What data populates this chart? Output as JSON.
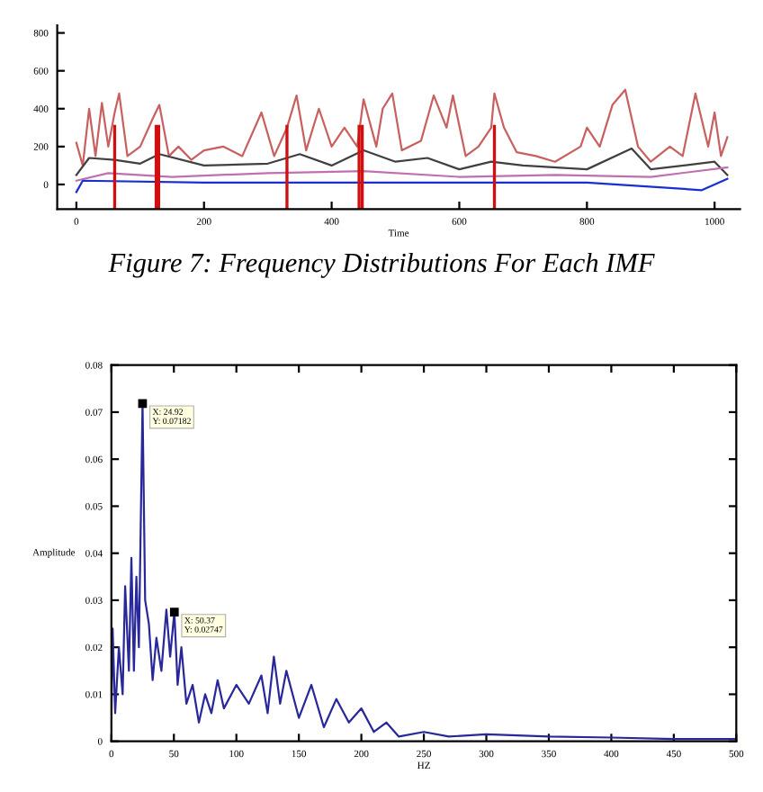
{
  "chart_data": [
    {
      "type": "line",
      "xlabel": "Time",
      "xlim": [
        -30,
        1040
      ],
      "ylim": [
        -130,
        840
      ],
      "xticks": [
        0,
        200,
        400,
        600,
        800,
        1000
      ],
      "yticks": [
        0,
        200,
        400,
        600,
        800
      ],
      "grid": false,
      "legend": false,
      "marker": "none",
      "line_style": "solid",
      "annotations": [
        "Figure 7: Frequency Distributions For Each IMF"
      ],
      "ref_lines": [
        {
          "axis": "x",
          "value": 60,
          "color": "#d01010"
        },
        {
          "axis": "x",
          "value": 125,
          "color": "#d01010"
        },
        {
          "axis": "x",
          "value": 129,
          "color": "#d01010"
        },
        {
          "axis": "x",
          "value": 330,
          "color": "#d01010"
        },
        {
          "axis": "x",
          "value": 443,
          "color": "#d01010"
        },
        {
          "axis": "x",
          "value": 448,
          "color": "#d01010"
        },
        {
          "axis": "x",
          "value": 655,
          "color": "#d01010"
        }
      ],
      "series": [
        {
          "color": "#c86060",
          "x": [
            0,
            10,
            20,
            30,
            40,
            50,
            60,
            67,
            80,
            100,
            120,
            130,
            145,
            160,
            180,
            200,
            230,
            260,
            290,
            310,
            330,
            345,
            360,
            380,
            400,
            420,
            440,
            450,
            470,
            480,
            495,
            510,
            540,
            560,
            580,
            590,
            610,
            630,
            650,
            655,
            670,
            690,
            720,
            750,
            790,
            800,
            820,
            840,
            860,
            880,
            900,
            930,
            950,
            970,
            990,
            1000,
            1010,
            1020
          ],
          "values": [
            220,
            100,
            400,
            150,
            430,
            200,
            380,
            480,
            150,
            200,
            350,
            420,
            150,
            200,
            130,
            180,
            200,
            150,
            380,
            150,
            300,
            470,
            180,
            400,
            200,
            300,
            200,
            450,
            200,
            400,
            480,
            180,
            230,
            470,
            300,
            470,
            150,
            200,
            300,
            480,
            300,
            170,
            150,
            120,
            200,
            300,
            200,
            420,
            500,
            200,
            120,
            200,
            150,
            480,
            200,
            380,
            150,
            250
          ]
        },
        {
          "color": "#404040",
          "x": [
            0,
            20,
            60,
            100,
            130,
            200,
            300,
            350,
            400,
            450,
            500,
            550,
            600,
            650,
            700,
            800,
            870,
            900,
            1000,
            1020
          ],
          "values": [
            50,
            140,
            130,
            110,
            160,
            100,
            110,
            160,
            100,
            180,
            120,
            140,
            80,
            120,
            100,
            80,
            190,
            80,
            120,
            50
          ]
        },
        {
          "color": "#c070b0",
          "x": [
            0,
            50,
            150,
            300,
            450,
            600,
            750,
            900,
            1020
          ],
          "values": [
            20,
            60,
            40,
            60,
            70,
            40,
            50,
            40,
            90
          ]
        },
        {
          "color": "#1a2fd0",
          "x": [
            0,
            10,
            200,
            500,
            800,
            980,
            1000,
            1020
          ],
          "values": [
            -40,
            20,
            10,
            10,
            10,
            -30,
            0,
            30
          ]
        }
      ]
    },
    {
      "type": "line",
      "xlabel": "HZ",
      "ylabel": "Amplitude",
      "xlim": [
        0,
        500
      ],
      "ylim": [
        0,
        0.08
      ],
      "xticks": [
        0,
        50,
        100,
        150,
        200,
        250,
        300,
        350,
        400,
        450,
        500
      ],
      "yticks": [
        0,
        0.01,
        0.02,
        0.03,
        0.04,
        0.05,
        0.06,
        0.07,
        0.08
      ],
      "grid": false,
      "legend": false,
      "marker": "none",
      "line_style": "solid",
      "annotations": [
        {
          "text": "X: 24.92\nY: 0.07182",
          "x": 24.92,
          "y": 0.07182
        },
        {
          "text": "X: 50.37\nY: 0.02747",
          "x": 50.37,
          "y": 0.02747
        }
      ],
      "series": [
        {
          "color": "#28289a",
          "x": [
            0,
            1,
            3,
            6,
            9,
            11,
            14,
            16,
            18,
            20,
            22,
            24.92,
            27,
            30,
            33,
            36,
            40,
            44,
            47,
            50.37,
            53,
            56,
            60,
            65,
            70,
            75,
            80,
            85,
            90,
            100,
            110,
            120,
            125,
            130,
            135,
            140,
            150,
            160,
            170,
            180,
            190,
            200,
            210,
            220,
            230,
            250,
            270,
            300,
            350,
            400,
            450,
            500
          ],
          "values": [
            0.005,
            0.024,
            0.006,
            0.02,
            0.01,
            0.033,
            0.015,
            0.039,
            0.015,
            0.035,
            0.02,
            0.07182,
            0.03,
            0.025,
            0.013,
            0.022,
            0.015,
            0.028,
            0.018,
            0.02747,
            0.012,
            0.02,
            0.008,
            0.012,
            0.004,
            0.01,
            0.006,
            0.013,
            0.007,
            0.012,
            0.008,
            0.014,
            0.006,
            0.018,
            0.008,
            0.015,
            0.005,
            0.012,
            0.003,
            0.009,
            0.004,
            0.007,
            0.002,
            0.004,
            0.001,
            0.002,
            0.001,
            0.0015,
            0.001,
            0.0008,
            0.0005,
            0.0005
          ]
        }
      ]
    }
  ]
}
